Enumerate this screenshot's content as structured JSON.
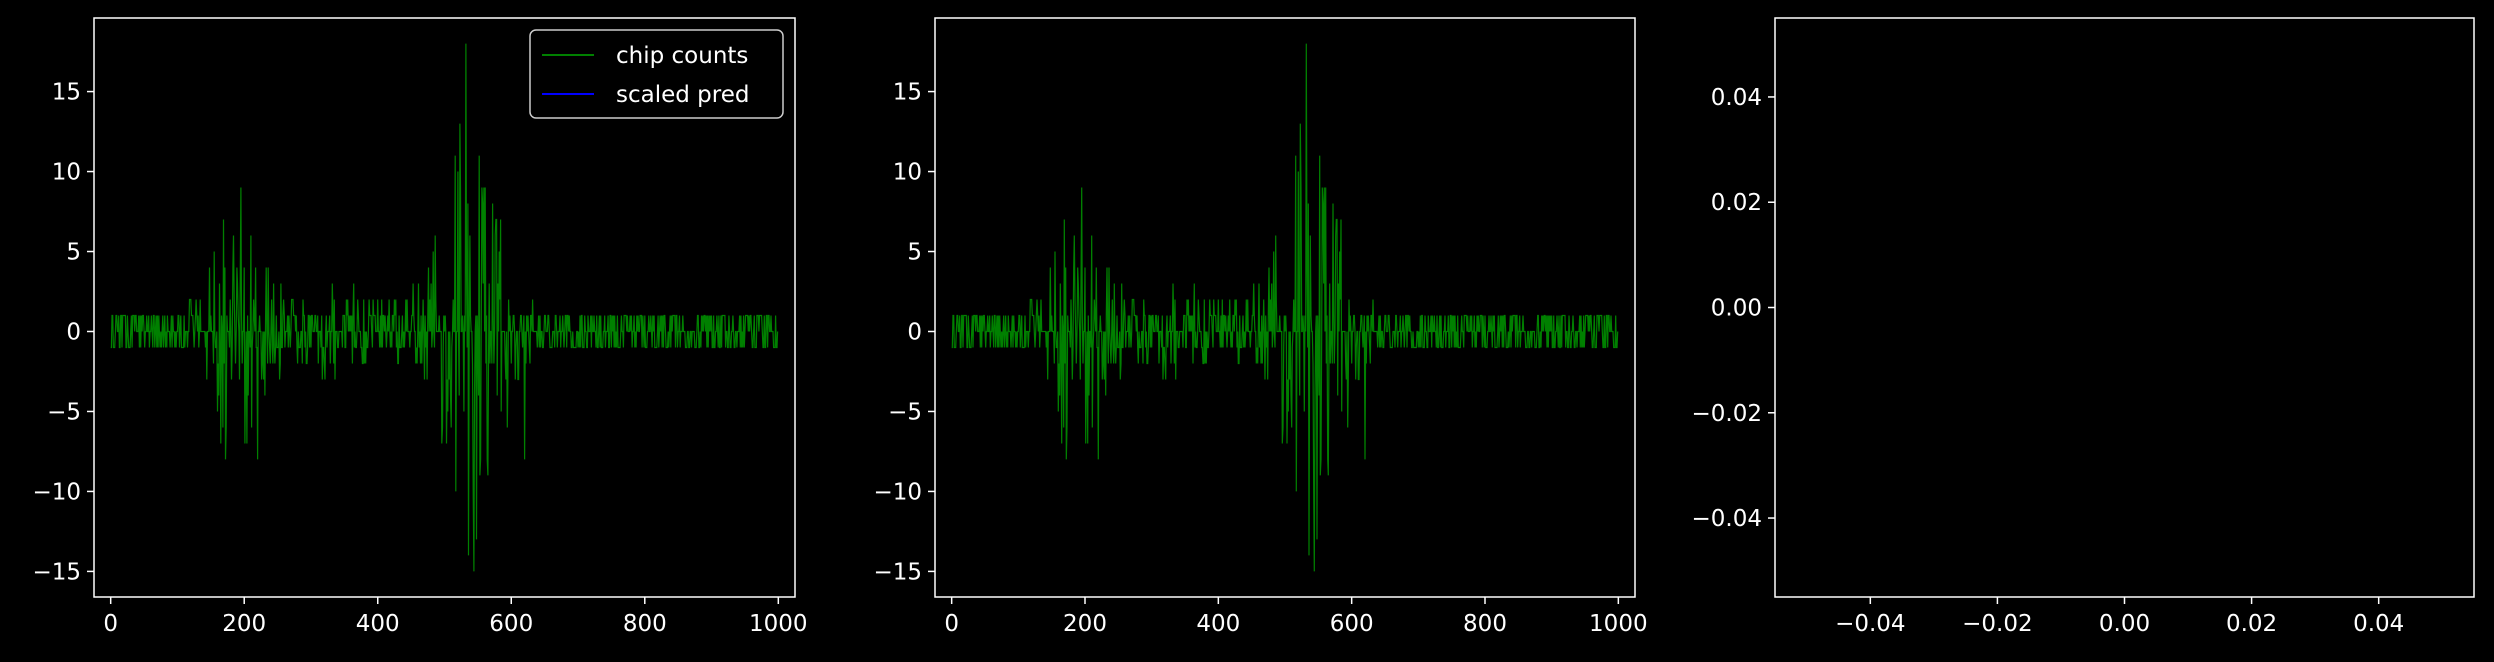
{
  "colors": {
    "background": "#000000",
    "axes": "#ffffff",
    "series_chip_counts": "#008000",
    "series_scaled_pred": "#0000ff"
  },
  "chart_data": [
    {
      "type": "line",
      "xlim": [
        -25,
        1025
      ],
      "ylim": [
        -16.6,
        19.6
      ],
      "xticks": [
        0,
        200,
        400,
        600,
        800,
        1000
      ],
      "yticks": [
        -15,
        -10,
        -5,
        0,
        5,
        10,
        15
      ],
      "xtick_labels": [
        "0",
        "200",
        "400",
        "600",
        "800",
        "1000"
      ],
      "ytick_labels": [
        "−15",
        "−10",
        "−5",
        "0",
        "5",
        "10",
        "15"
      ],
      "grid": false,
      "legend": {
        "placement": "top-right",
        "entries": [
          "chip counts",
          "scaled pred"
        ]
      },
      "series": [
        {
          "name": "chip counts",
          "color": "#008000",
          "x_range": [
            0,
            999
          ],
          "approx_peak_max": 18,
          "approx_peak_min": -15
        },
        {
          "name": "scaled pred",
          "color": "#0000ff",
          "values": []
        }
      ]
    },
    {
      "type": "line",
      "xlim": [
        -25,
        1025
      ],
      "ylim": [
        -16.6,
        19.6
      ],
      "xticks": [
        0,
        200,
        400,
        600,
        800,
        1000
      ],
      "yticks": [
        -15,
        -10,
        -5,
        0,
        5,
        10,
        15
      ],
      "xtick_labels": [
        "0",
        "200",
        "400",
        "600",
        "800",
        "1000"
      ],
      "ytick_labels": [
        "−15",
        "−10",
        "−5",
        "0",
        "5",
        "10",
        "15"
      ],
      "grid": false,
      "series": [
        {
          "color": "#008000",
          "x_range": [
            0,
            999
          ],
          "approx_peak_max": 18,
          "approx_peak_min": -15
        }
      ]
    },
    {
      "type": "line",
      "xlim": [
        -0.055,
        0.055
      ],
      "ylim": [
        -0.055,
        0.055
      ],
      "xticks": [
        -0.04,
        -0.02,
        0.0,
        0.02,
        0.04
      ],
      "yticks": [
        -0.04,
        -0.02,
        0.0,
        0.02,
        0.04
      ],
      "xtick_labels": [
        "−0.04",
        "−0.02",
        "0.00",
        "0.02",
        "0.04"
      ],
      "ytick_labels": [
        "−0.04",
        "−0.02",
        "0.00",
        "0.02",
        "0.04"
      ],
      "grid": false,
      "series": []
    }
  ]
}
